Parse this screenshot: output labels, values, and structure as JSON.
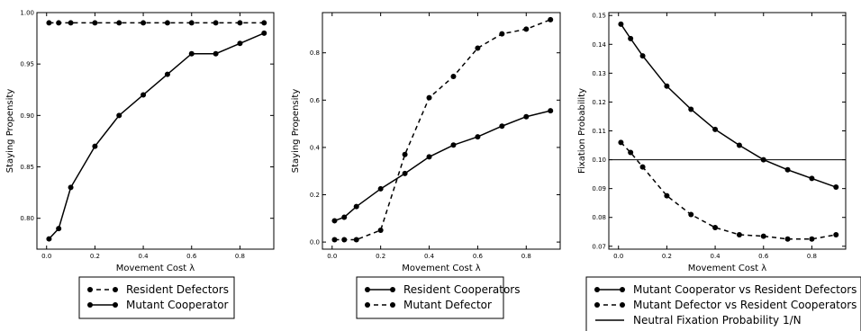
{
  "chart_data": [
    {
      "type": "line",
      "xlabel": "Movement Cost λ",
      "ylabel": "Staying Propensity",
      "xlim": [
        -0.04,
        0.94
      ],
      "ylim": [
        0.77,
        1.0
      ],
      "xticks": [
        "0.0",
        "0.2",
        "0.4",
        "0.6",
        "0.8"
      ],
      "xtick_values": [
        0.0,
        0.2,
        0.4,
        0.6,
        0.8
      ],
      "yticks": [
        "0.80",
        "0.85",
        "0.90",
        "0.95",
        "1.00"
      ],
      "ytick_values": [
        0.8,
        0.85,
        0.9,
        0.95,
        1.0
      ],
      "legend_placement": "below",
      "series": [
        {
          "name": "Resident Defectors",
          "style": "dashed",
          "x": [
            0.01,
            0.05,
            0.1,
            0.2,
            0.3,
            0.4,
            0.5,
            0.6,
            0.7,
            0.8,
            0.9
          ],
          "values": [
            0.99,
            0.99,
            0.99,
            0.99,
            0.99,
            0.99,
            0.99,
            0.99,
            0.99,
            0.99,
            0.99
          ]
        },
        {
          "name": "Mutant Cooperator",
          "style": "solid",
          "x": [
            0.01,
            0.05,
            0.1,
            0.2,
            0.3,
            0.4,
            0.5,
            0.6,
            0.7,
            0.8,
            0.9
          ],
          "values": [
            0.78,
            0.79,
            0.83,
            0.87,
            0.9,
            0.92,
            0.94,
            0.96,
            0.96,
            0.97,
            0.98
          ]
        }
      ]
    },
    {
      "type": "line",
      "xlabel": "Movement Cost λ",
      "ylabel": "Staying Propensity",
      "xlim": [
        -0.04,
        0.94
      ],
      "ylim": [
        -0.03,
        0.97
      ],
      "xticks": [
        "0.0",
        "0.2",
        "0.4",
        "0.6",
        "0.8"
      ],
      "xtick_values": [
        0.0,
        0.2,
        0.4,
        0.6,
        0.8
      ],
      "yticks": [
        "0.0",
        "0.2",
        "0.4",
        "0.6",
        "0.8"
      ],
      "ytick_values": [
        0.0,
        0.2,
        0.4,
        0.6,
        0.8
      ],
      "legend_placement": "below",
      "series": [
        {
          "name": "Resident Cooperators",
          "style": "solid",
          "x": [
            0.01,
            0.05,
            0.1,
            0.2,
            0.3,
            0.4,
            0.5,
            0.6,
            0.7,
            0.8,
            0.9
          ],
          "values": [
            0.09,
            0.105,
            0.15,
            0.225,
            0.29,
            0.36,
            0.41,
            0.445,
            0.49,
            0.53,
            0.555
          ]
        },
        {
          "name": "Mutant Defector",
          "style": "dashed",
          "x": [
            0.01,
            0.05,
            0.1,
            0.2,
            0.3,
            0.4,
            0.5,
            0.6,
            0.7,
            0.8,
            0.9
          ],
          "values": [
            0.01,
            0.01,
            0.01,
            0.05,
            0.37,
            0.61,
            0.7,
            0.82,
            0.88,
            0.9,
            0.94
          ]
        }
      ]
    },
    {
      "type": "line",
      "xlabel": "Movement Cost λ",
      "ylabel": "Fixation Probability",
      "xlim": [
        -0.04,
        0.94
      ],
      "ylim": [
        0.069,
        0.151
      ],
      "xticks": [
        "0.0",
        "0.2",
        "0.4",
        "0.6",
        "0.8"
      ],
      "xtick_values": [
        0.0,
        0.2,
        0.4,
        0.6,
        0.8
      ],
      "yticks": [
        "0.07",
        "0.08",
        "0.09",
        "0.10",
        "0.11",
        "0.12",
        "0.13",
        "0.14",
        "0.15"
      ],
      "ytick_values": [
        0.07,
        0.08,
        0.09,
        0.1,
        0.11,
        0.12,
        0.13,
        0.14,
        0.15
      ],
      "legend_placement": "below",
      "series": [
        {
          "name": "Mutant Cooperator vs Resident Defectors",
          "style": "solid",
          "x": [
            0.01,
            0.05,
            0.1,
            0.2,
            0.3,
            0.4,
            0.5,
            0.6,
            0.7,
            0.8,
            0.9
          ],
          "values": [
            0.147,
            0.142,
            0.136,
            0.1255,
            0.1175,
            0.1105,
            0.105,
            0.1,
            0.0965,
            0.0935,
            0.0905
          ]
        },
        {
          "name": "Mutant Defector vs Resident Cooperators",
          "style": "dashed",
          "x": [
            0.01,
            0.05,
            0.1,
            0.2,
            0.3,
            0.4,
            0.5,
            0.6,
            0.7,
            0.8,
            0.9
          ],
          "values": [
            0.106,
            0.1025,
            0.0975,
            0.0875,
            0.081,
            0.0765,
            0.074,
            0.0735,
            0.0725,
            0.0725,
            0.074
          ]
        }
      ],
      "reference_line": {
        "name": "Neutral Fixation Probability 1/N",
        "style": "solid-no-markers",
        "value": 0.1
      }
    }
  ],
  "colors": {
    "line": "#000000",
    "axes": "#000000",
    "legend_border": "#000000"
  }
}
